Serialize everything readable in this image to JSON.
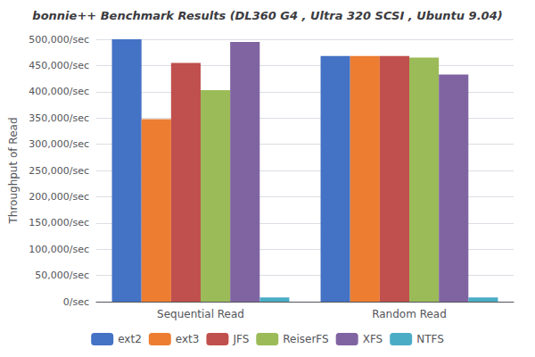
{
  "chart_data": {
    "type": "bar",
    "title": "bonnie++ Benchmark Results (DL360 G4 , Ultra 320 SCSI , Ubuntu 9.04)",
    "ylabel": "Throughput of Read",
    "categories": [
      "Sequential Read",
      "Random Read"
    ],
    "series": [
      {
        "name": "ext2",
        "color": "#4472C4",
        "values": [
          500000,
          468000
        ]
      },
      {
        "name": "ext3",
        "color": "#ED7D31",
        "values": [
          348000,
          468000
        ]
      },
      {
        "name": "JFS",
        "color": "#C0504D",
        "values": [
          455000,
          468000
        ]
      },
      {
        "name": "ReiserFS",
        "color": "#9BBB59",
        "values": [
          403000,
          465000
        ]
      },
      {
        "name": "XFS",
        "color": "#8064A2",
        "values": [
          495000,
          433000
        ]
      },
      {
        "name": "NTFS",
        "color": "#4BACC6",
        "values": [
          8000,
          8000
        ]
      }
    ],
    "ylim": [
      0,
      500000
    ],
    "yticks": [
      {
        "value": 0,
        "label": "0/sec"
      },
      {
        "value": 50000,
        "label": "50,000/sec"
      },
      {
        "value": 100000,
        "label": "100,000/sec"
      },
      {
        "value": 150000,
        "label": "150,000/sec"
      },
      {
        "value": 200000,
        "label": "200,000/sec"
      },
      {
        "value": 250000,
        "label": "250,000/sec"
      },
      {
        "value": 300000,
        "label": "300,000/sec"
      },
      {
        "value": 350000,
        "label": "350,000/sec"
      },
      {
        "value": 400000,
        "label": "400,000/sec"
      },
      {
        "value": 450000,
        "label": "450,000/sec"
      },
      {
        "value": 500000,
        "label": "500,000/sec"
      }
    ],
    "grid": true,
    "legend": "bottom"
  }
}
